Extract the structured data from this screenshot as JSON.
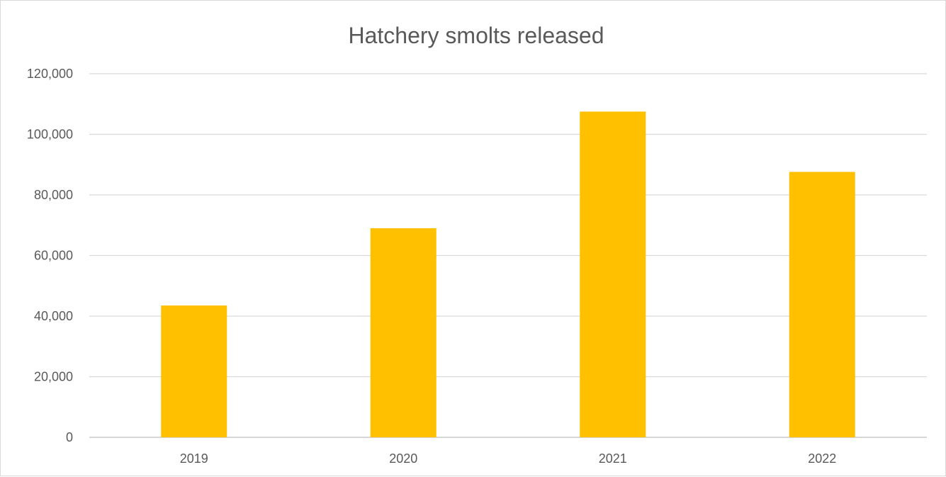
{
  "chart_data": {
    "type": "bar",
    "title": "Hatchery smolts released",
    "categories": [
      "2019",
      "2020",
      "2021",
      "2022"
    ],
    "values": [
      43500,
      69000,
      107500,
      87600
    ],
    "ylim": [
      0,
      120000
    ],
    "y_ticks": [
      0,
      20000,
      40000,
      60000,
      80000,
      100000,
      120000
    ],
    "y_tick_labels": [
      "0",
      "20,000",
      "40,000",
      "60,000",
      "80,000",
      "100,000",
      "120,000"
    ],
    "grid": true,
    "legend": "none",
    "bar_color": "#FFC000"
  }
}
